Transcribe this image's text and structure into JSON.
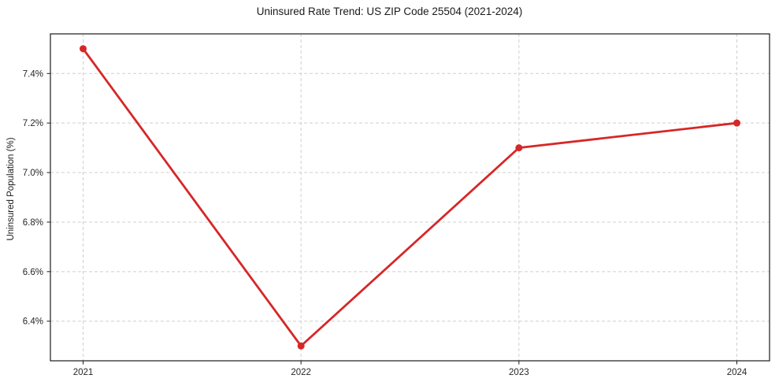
{
  "chart_data": {
    "type": "line",
    "title": "Uninsured Rate Trend: US ZIP Code 25504 (2021-2024)",
    "xlabel": "",
    "ylabel": "Uninsured Population (%)",
    "categories": [
      "2021",
      "2022",
      "2023",
      "2024"
    ],
    "values": [
      7.5,
      6.3,
      7.1,
      7.2
    ],
    "yticks": [
      {
        "value": 6.4,
        "label": "6.4%"
      },
      {
        "value": 6.6,
        "label": "6.6%"
      },
      {
        "value": 6.8,
        "label": "6.8%"
      },
      {
        "value": 7.0,
        "label": "7.0%"
      },
      {
        "value": 7.2,
        "label": "7.2%"
      },
      {
        "value": 7.4,
        "label": "7.4%"
      }
    ],
    "ylim": [
      6.24,
      7.56
    ],
    "grid": true,
    "grid_style": "dashed",
    "legend": false,
    "marker": "circle",
    "colors": {
      "line": "#d62728",
      "marker": "#d62728",
      "grid": "#cfcfcf",
      "spine": "#1a1a1a",
      "tick_text": "#262626",
      "title_text": "#1a1a1a",
      "background": "#ffffff"
    }
  }
}
